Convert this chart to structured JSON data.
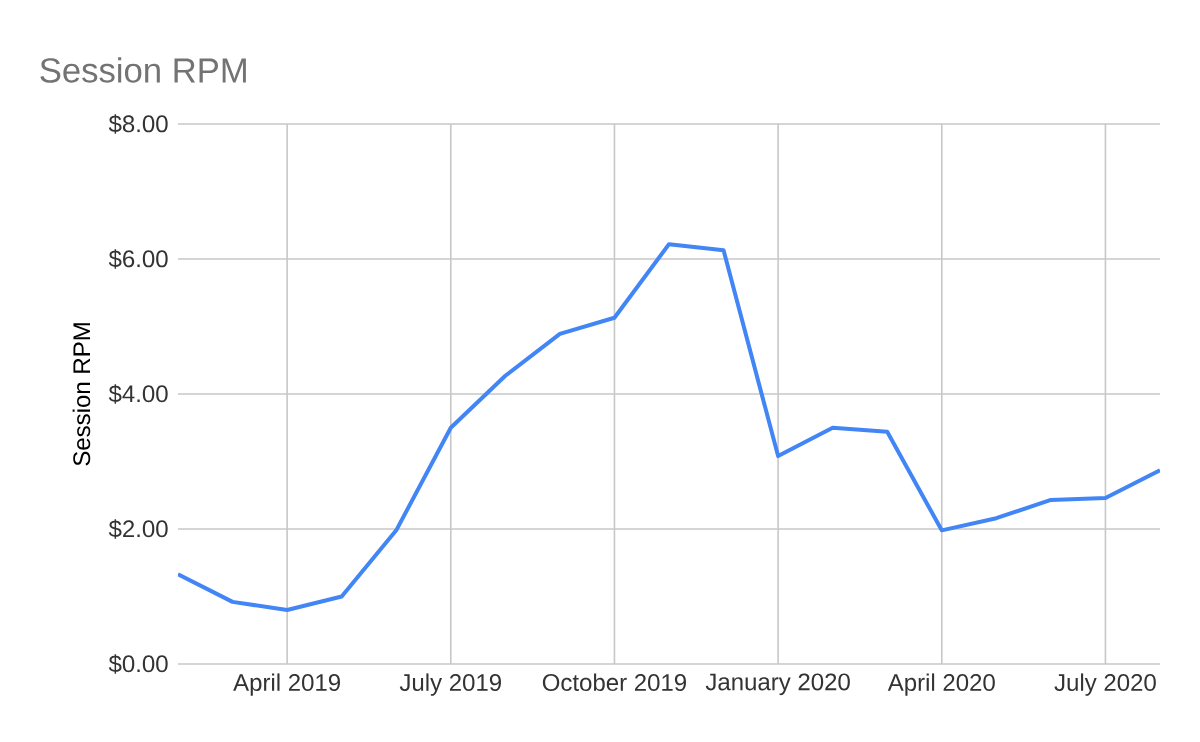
{
  "chart_data": {
    "type": "line",
    "title": "Session RPM",
    "ylabel": "Session RPM",
    "x": [
      "2019-02",
      "2019-03",
      "2019-04",
      "2019-05",
      "2019-06",
      "2019-07",
      "2019-08",
      "2019-09",
      "2019-10",
      "2019-11",
      "2019-12",
      "2020-01",
      "2020-02",
      "2020-03",
      "2020-04",
      "2020-05",
      "2020-06",
      "2020-07",
      "2020-08"
    ],
    "series": [
      {
        "color": "#4285f4",
        "values": [
          1.33,
          0.92,
          0.8,
          1.0,
          1.98,
          3.5,
          4.27,
          4.89,
          5.13,
          6.22,
          6.13,
          3.08,
          3.5,
          3.44,
          1.98,
          2.16,
          2.43,
          2.46,
          2.87
        ]
      }
    ],
    "xlim": [
      "2019-02",
      "2020-08"
    ],
    "xticks": [
      {
        "value": "2019-04",
        "label": "April 2019"
      },
      {
        "value": "2019-07",
        "label": "July 2019"
      },
      {
        "value": "2019-10",
        "label": "October 2019"
      },
      {
        "value": "2020-01",
        "label": "January 2020"
      },
      {
        "value": "2020-04",
        "label": "April 2020"
      },
      {
        "value": "2020-07",
        "label": "July 2020"
      }
    ],
    "ylim": [
      0,
      8
    ],
    "yticks": [
      {
        "value": 0,
        "label": "$0.00"
      },
      {
        "value": 2,
        "label": "$2.00"
      },
      {
        "value": 4,
        "label": "$4.00"
      },
      {
        "value": 6,
        "label": "$6.00"
      },
      {
        "value": 8,
        "label": "$8.00"
      }
    ],
    "grid": true,
    "marker": "none",
    "line_style": "solid"
  }
}
